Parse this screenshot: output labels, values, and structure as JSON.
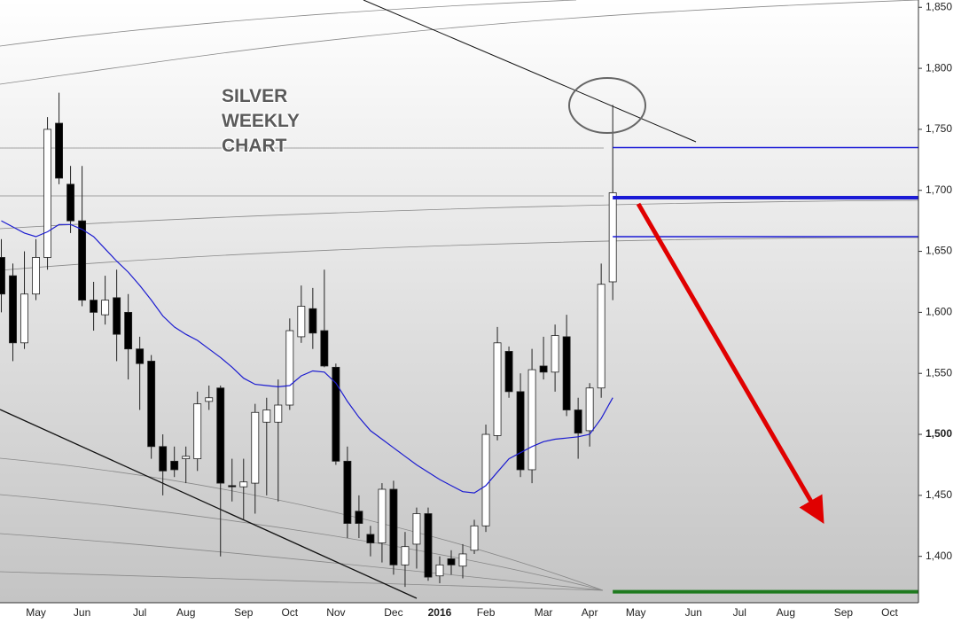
{
  "chart_data": {
    "type": "candlestick",
    "title": "SILVER WEEKLY CHART",
    "categories": [
      null,
      null,
      null,
      "May",
      null,
      null,
      null,
      "Jun",
      null,
      null,
      null,
      null,
      "Jul",
      null,
      null,
      null,
      "Aug",
      null,
      null,
      null,
      null,
      "Sep",
      null,
      null,
      null,
      "Oct",
      null,
      null,
      null,
      "Nov",
      null,
      null,
      null,
      null,
      "Dec",
      null,
      null,
      null,
      "2016",
      null,
      null,
      null,
      "Feb",
      null,
      null,
      null,
      null,
      "Mar",
      null,
      null,
      null,
      "Apr",
      null,
      null,
      null,
      "May",
      null,
      null,
      null,
      null,
      "Jun",
      null,
      null,
      null,
      "Jul",
      null,
      null,
      null,
      "Aug",
      null,
      null,
      null,
      null,
      "Sep",
      null,
      null,
      null,
      "Oct",
      null,
      null
    ],
    "open": [
      1645,
      1630,
      1575,
      1615,
      1645,
      1755,
      1705,
      1675,
      1610,
      1598,
      1612,
      1600,
      1570,
      1560,
      1490,
      1478,
      1480,
      1480,
      1527,
      1538,
      1458,
      1457,
      1460,
      1510,
      1510,
      1524,
      1580,
      1603,
      1585,
      1555,
      1478,
      1437,
      1418,
      1411,
      1455,
      1393,
      1410,
      1435,
      1384,
      1398,
      1392,
      1405,
      1425,
      1499,
      1568,
      1535,
      1471,
      1556,
      1551,
      1580,
      1520,
      1503,
      1538,
      1625,
      null,
      null,
      null,
      null,
      null,
      null,
      null,
      null,
      null,
      null,
      null,
      null,
      null,
      null,
      null,
      null,
      null,
      null,
      null,
      null,
      null,
      null,
      null,
      null,
      null,
      null
    ],
    "high": [
      1660,
      1640,
      1650,
      1660,
      1760,
      1780,
      1720,
      1720,
      1625,
      1630,
      1635,
      1615,
      1580,
      1565,
      1500,
      1490,
      1490,
      1535,
      1540,
      1540,
      1480,
      1480,
      1525,
      1530,
      1545,
      1595,
      1622,
      1620,
      1635,
      1558,
      1490,
      1450,
      1425,
      1460,
      1462,
      1420,
      1440,
      1440,
      1400,
      1405,
      1410,
      1430,
      1508,
      1588,
      1572,
      1550,
      1570,
      1580,
      1590,
      1598,
      1530,
      1542,
      1640,
      1770,
      null,
      null,
      null,
      null,
      null,
      null,
      null,
      null,
      null,
      null,
      null,
      null,
      null,
      null,
      null,
      null,
      null,
      null,
      null,
      null,
      null,
      null,
      null,
      null,
      null,
      null
    ],
    "low": [
      1600,
      1560,
      1570,
      1610,
      1635,
      1705,
      1665,
      1605,
      1585,
      1590,
      1560,
      1545,
      1520,
      1480,
      1450,
      1465,
      1460,
      1470,
      1520,
      1400,
      1445,
      1430,
      1435,
      1450,
      1445,
      1520,
      1575,
      1570,
      1555,
      1475,
      1415,
      1415,
      1400,
      1395,
      1385,
      1375,
      1390,
      1380,
      1378,
      1385,
      1382,
      1402,
      1420,
      1495,
      1530,
      1465,
      1460,
      1545,
      1535,
      1515,
      1480,
      1490,
      1530,
      1610,
      null,
      null,
      null,
      null,
      null,
      null,
      null,
      null,
      null,
      null,
      null,
      null,
      null,
      null,
      null,
      null,
      null,
      null,
      null,
      null,
      null,
      null,
      null,
      null,
      null,
      null
    ],
    "close": [
      1615,
      1575,
      1615,
      1645,
      1750,
      1710,
      1675,
      1610,
      1600,
      1610,
      1582,
      1570,
      1558,
      1490,
      1470,
      1471,
      1482,
      1525,
      1530,
      1460,
      1457,
      1461,
      1518,
      1520,
      1524,
      1585,
      1605,
      1583,
      1556,
      1478,
      1427,
      1427,
      1411,
      1455,
      1393,
      1408,
      1435,
      1383,
      1393,
      1393,
      1402,
      1425,
      1500,
      1575,
      1535,
      1471,
      1553,
      1551,
      1581,
      1520,
      1501,
      1538,
      1623,
      1698,
      null,
      null,
      null,
      null,
      null,
      null,
      null,
      null,
      null,
      null,
      null,
      null,
      null,
      null,
      null,
      null,
      null,
      null,
      null,
      null,
      null,
      null,
      null,
      null,
      null,
      null
    ],
    "moving_average": {
      "color": "#1c1cd0",
      "values": [
        1675,
        1670,
        1665,
        1662,
        1666,
        1672,
        1672,
        1668,
        1662,
        1652,
        1642,
        1633,
        1622,
        1610,
        1597,
        1588,
        1582,
        1577,
        1570,
        1563,
        1555,
        1546,
        1541,
        1540,
        1539,
        1540,
        1548,
        1552,
        1551,
        1542,
        1527,
        1514,
        1503,
        1496,
        1489,
        1482,
        1475,
        1469,
        1463,
        1458,
        1453,
        1452,
        1458,
        1469,
        1480,
        1485,
        1490,
        1494,
        1496,
        1497,
        1498,
        1500,
        1513,
        1530,
        null,
        null,
        null,
        null,
        null,
        null,
        null,
        null,
        null,
        null,
        null,
        null,
        null,
        null,
        null,
        null,
        null,
        null,
        null,
        null,
        null,
        null,
        null,
        null,
        null,
        null
      ]
    },
    "levels": [
      {
        "value": 1735,
        "color": "#1a1ad6",
        "width": 1.5
      },
      {
        "value": 1694,
        "color": "#1a1ad6",
        "width": 4
      },
      {
        "value": 1662,
        "color": "#1a1ad6",
        "width": 1.5
      },
      {
        "value": 1371,
        "color": "#1f7a1f",
        "width": 4
      }
    ],
    "up_color": "#ffffff",
    "down_color": "#000000",
    "ylim": [
      1362,
      1856
    ],
    "yticks": [
      {
        "value": 1400,
        "label": "1,400"
      },
      {
        "value": 1450,
        "label": "1,450"
      },
      {
        "value": 1500,
        "label": "1,500",
        "bold": true
      },
      {
        "value": 1550,
        "label": "1,550"
      },
      {
        "value": 1600,
        "label": "1,600"
      },
      {
        "value": 1650,
        "label": "1,650"
      },
      {
        "value": 1700,
        "label": "1,700"
      },
      {
        "value": 1750,
        "label": "1,750"
      },
      {
        "value": 1800,
        "label": "1,800"
      },
      {
        "value": 1850,
        "label": "1,850"
      }
    ]
  }
}
